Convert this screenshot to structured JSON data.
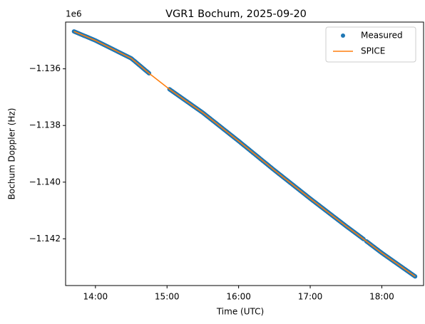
{
  "chart_data": {
    "type": "scatter",
    "title": "VGR1 Bochum, 2025-09-20",
    "xlabel": "Time (UTC)",
    "ylabel": "Bochum Doppler (Hz)",
    "y_offset_label": "1e6",
    "xlim": [
      "13:35",
      "18:35"
    ],
    "ylim": [
      -1143.65,
      -1134.35
    ],
    "y_unit_scale": 1000,
    "x_ticks": [
      "14:00",
      "15:00",
      "16:00",
      "17:00",
      "18:00"
    ],
    "y_ticks": [
      {
        "value": -1136,
        "label": "−1.136"
      },
      {
        "value": -1138,
        "label": "−1.138"
      },
      {
        "value": -1140,
        "label": "−1.140"
      },
      {
        "value": -1142,
        "label": "−1.142"
      }
    ],
    "legend_position": "top-right",
    "grid": false,
    "series": [
      {
        "name": "Measured",
        "style": "dots",
        "color": "#1f77b4",
        "segments": [
          {
            "start": "13:42",
            "end": "14:45"
          },
          {
            "start": "15:02",
            "end": "17:45"
          },
          {
            "start": "17:47",
            "end": "18:28"
          }
        ]
      },
      {
        "name": "SPICE",
        "style": "line",
        "color": "#ff7f0e",
        "points": [
          {
            "x": "13:42",
            "y": -1134.68
          },
          {
            "x": "14:00",
            "y": -1135.0
          },
          {
            "x": "14:30",
            "y": -1135.63
          },
          {
            "x": "14:45",
            "y": -1136.16
          },
          {
            "x": "15:02",
            "y": -1136.72
          },
          {
            "x": "15:30",
            "y": -1137.55
          },
          {
            "x": "16:00",
            "y": -1138.55
          },
          {
            "x": "16:30",
            "y": -1139.58
          },
          {
            "x": "17:00",
            "y": -1140.58
          },
          {
            "x": "17:30",
            "y": -1141.55
          },
          {
            "x": "17:45",
            "y": -1142.02
          },
          {
            "x": "18:00",
            "y": -1142.5
          },
          {
            "x": "18:28",
            "y": -1143.33
          }
        ]
      }
    ]
  }
}
